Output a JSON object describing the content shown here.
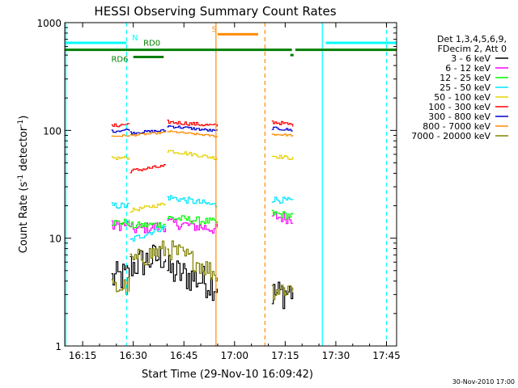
{
  "chart_data": {
    "type": "line",
    "title": "HESSI Observing Summary Count Rates",
    "xlabel": "Start Time (29-Nov-10 16:09:42)",
    "ylabel_main": "Count Rate (s",
    "ylabel_sup1": "-1",
    "ylabel_mid": " detector",
    "ylabel_sup2": "-1",
    "ylabel_end": ")",
    "y_scale": "log",
    "xlim": [
      "16:09:42",
      "17:48:00"
    ],
    "ylim": [
      1,
      1000
    ],
    "x_ticks": [
      "16:15",
      "16:30",
      "16:45",
      "17:00",
      "17:15",
      "17:30",
      "17:45"
    ],
    "y_ticks": [
      "1",
      "10",
      "100",
      "1000"
    ],
    "footer": "30-Nov-2010 17:00",
    "legend": {
      "placement": "right",
      "header": [
        "Det 1,3,4,5,6,9,",
        "FDecim 2, Att 0"
      ],
      "entries": [
        {
          "label": "3 - 6 keV",
          "color": "#000000"
        },
        {
          "label": "6 - 12 keV",
          "color": "#ff00ff"
        },
        {
          "label": "12 - 25 keV",
          "color": "#00ff00"
        },
        {
          "label": "25 - 50 keV",
          "color": "#00e5ff"
        },
        {
          "label": "50 - 100 keV",
          "color": "#e6d200"
        },
        {
          "label": "100 - 300 keV",
          "color": "#ff0000"
        },
        {
          "label": "300 - 800 keV",
          "color": "#0000cc"
        },
        {
          "label": "800 - 7000 keV",
          "color": "#ff8c00"
        },
        {
          "label": "7000 - 20000 keV",
          "color": "#808000"
        }
      ]
    },
    "flag_labels": {
      "night": "N",
      "saa": "S",
      "rd0": "RD0",
      "rd6": "RD6"
    },
    "flags": [
      {
        "name": "night",
        "color": "#00ffff",
        "y": 650,
        "intervals": [
          [
            "16:09:42",
            "16:28:00"
          ],
          [
            "17:27:00",
            "17:48:00"
          ]
        ]
      },
      {
        "name": "saa",
        "color": "#ff8c00",
        "y": 780,
        "intervals": [
          [
            "16:55:00",
            "17:07:00"
          ]
        ]
      },
      {
        "name": "rd",
        "color": "#008000",
        "y": 560,
        "intervals": [
          [
            "16:09:42",
            "17:17:00"
          ],
          [
            "17:18:00",
            "17:48:00"
          ]
        ]
      },
      {
        "name": "rd0-marker",
        "color": "#008000",
        "y": 480,
        "intervals": [
          [
            "16:30:00",
            "16:39:00"
          ]
        ]
      },
      {
        "name": "rd-tick",
        "color": "#008000",
        "y": 500,
        "intervals": [
          [
            "17:16:30",
            "17:17:30"
          ]
        ]
      }
    ],
    "vlines": [
      {
        "x": "16:10:00",
        "color": "#00ffff",
        "style": "solid"
      },
      {
        "x": "16:28:00",
        "color": "#00ffff",
        "style": "dashed"
      },
      {
        "x": "16:54:30",
        "color": "#ff8c00",
        "style": "solid"
      },
      {
        "x": "17:09:00",
        "color": "#ff8c00",
        "style": "dashed"
      },
      {
        "x": "17:26:00",
        "color": "#00ffff",
        "style": "solid"
      },
      {
        "x": "17:45:00",
        "color": "#00ffff",
        "style": "dashed"
      }
    ],
    "segments": [
      {
        "start": "16:23:30",
        "end": "16:29:00"
      },
      {
        "start": "16:29:00",
        "end": "16:40:00"
      },
      {
        "start": "16:40:00",
        "end": "16:55:00"
      },
      {
        "start": "17:11:00",
        "end": "17:17:30"
      }
    ],
    "series": [
      {
        "name": "3 - 6 keV",
        "color": "#000000",
        "noise": 0.35,
        "values": [
          [
            4.2,
            4.5
          ],
          [
            5.5,
            7.0
          ],
          [
            5.0,
            3.6
          ],
          [
            3.0,
            3.2
          ]
        ]
      },
      {
        "name": "6 - 12 keV",
        "color": "#ff00ff",
        "noise": 0.12,
        "values": [
          [
            13,
            13.5
          ],
          [
            12,
            13
          ],
          [
            14,
            12
          ],
          [
            16,
            15
          ]
        ]
      },
      {
        "name": "12 - 25 keV",
        "color": "#00ff00",
        "noise": 0.08,
        "values": [
          [
            14,
            14
          ],
          [
            13,
            13.5
          ],
          [
            15.5,
            14
          ],
          [
            17,
            16
          ]
        ]
      },
      {
        "name": "25 - 50 keV",
        "color": "#00e5ff",
        "noise": 0.07,
        "values": [
          [
            20,
            20
          ],
          [
            9.5,
            13
          ],
          [
            24,
            20
          ],
          [
            23,
            22
          ]
        ]
      },
      {
        "name": "50 - 100 keV",
        "color": "#e6d200",
        "noise": 0.04,
        "values": [
          [
            55,
            56
          ],
          [
            18,
            21
          ],
          [
            65,
            55
          ],
          [
            58,
            55
          ]
        ]
      },
      {
        "name": "100 - 300 keV",
        "color": "#ff0000",
        "noise": 0.04,
        "values": [
          [
            110,
            115
          ],
          [
            42,
            47
          ],
          [
            120,
            110
          ],
          [
            120,
            112
          ]
        ]
      },
      {
        "name": "300 - 800 keV",
        "color": "#0000cc",
        "noise": 0.03,
        "values": [
          [
            98,
            102
          ],
          [
            95,
            100
          ],
          [
            110,
            98
          ],
          [
            105,
            100
          ]
        ]
      },
      {
        "name": "800 - 7000 keV",
        "color": "#ff8c00",
        "noise": 0.02,
        "values": [
          [
            88,
            90
          ],
          [
            90,
            96
          ],
          [
            98,
            88
          ],
          [
            92,
            90
          ]
        ]
      },
      {
        "name": "7000 - 20000 keV",
        "color": "#808000",
        "noise": 0.22,
        "values": [
          [
            3.4,
            3.6
          ],
          [
            6.0,
            8.0
          ],
          [
            8.0,
            4.5
          ],
          [
            3.3,
            3.5
          ]
        ]
      }
    ]
  }
}
